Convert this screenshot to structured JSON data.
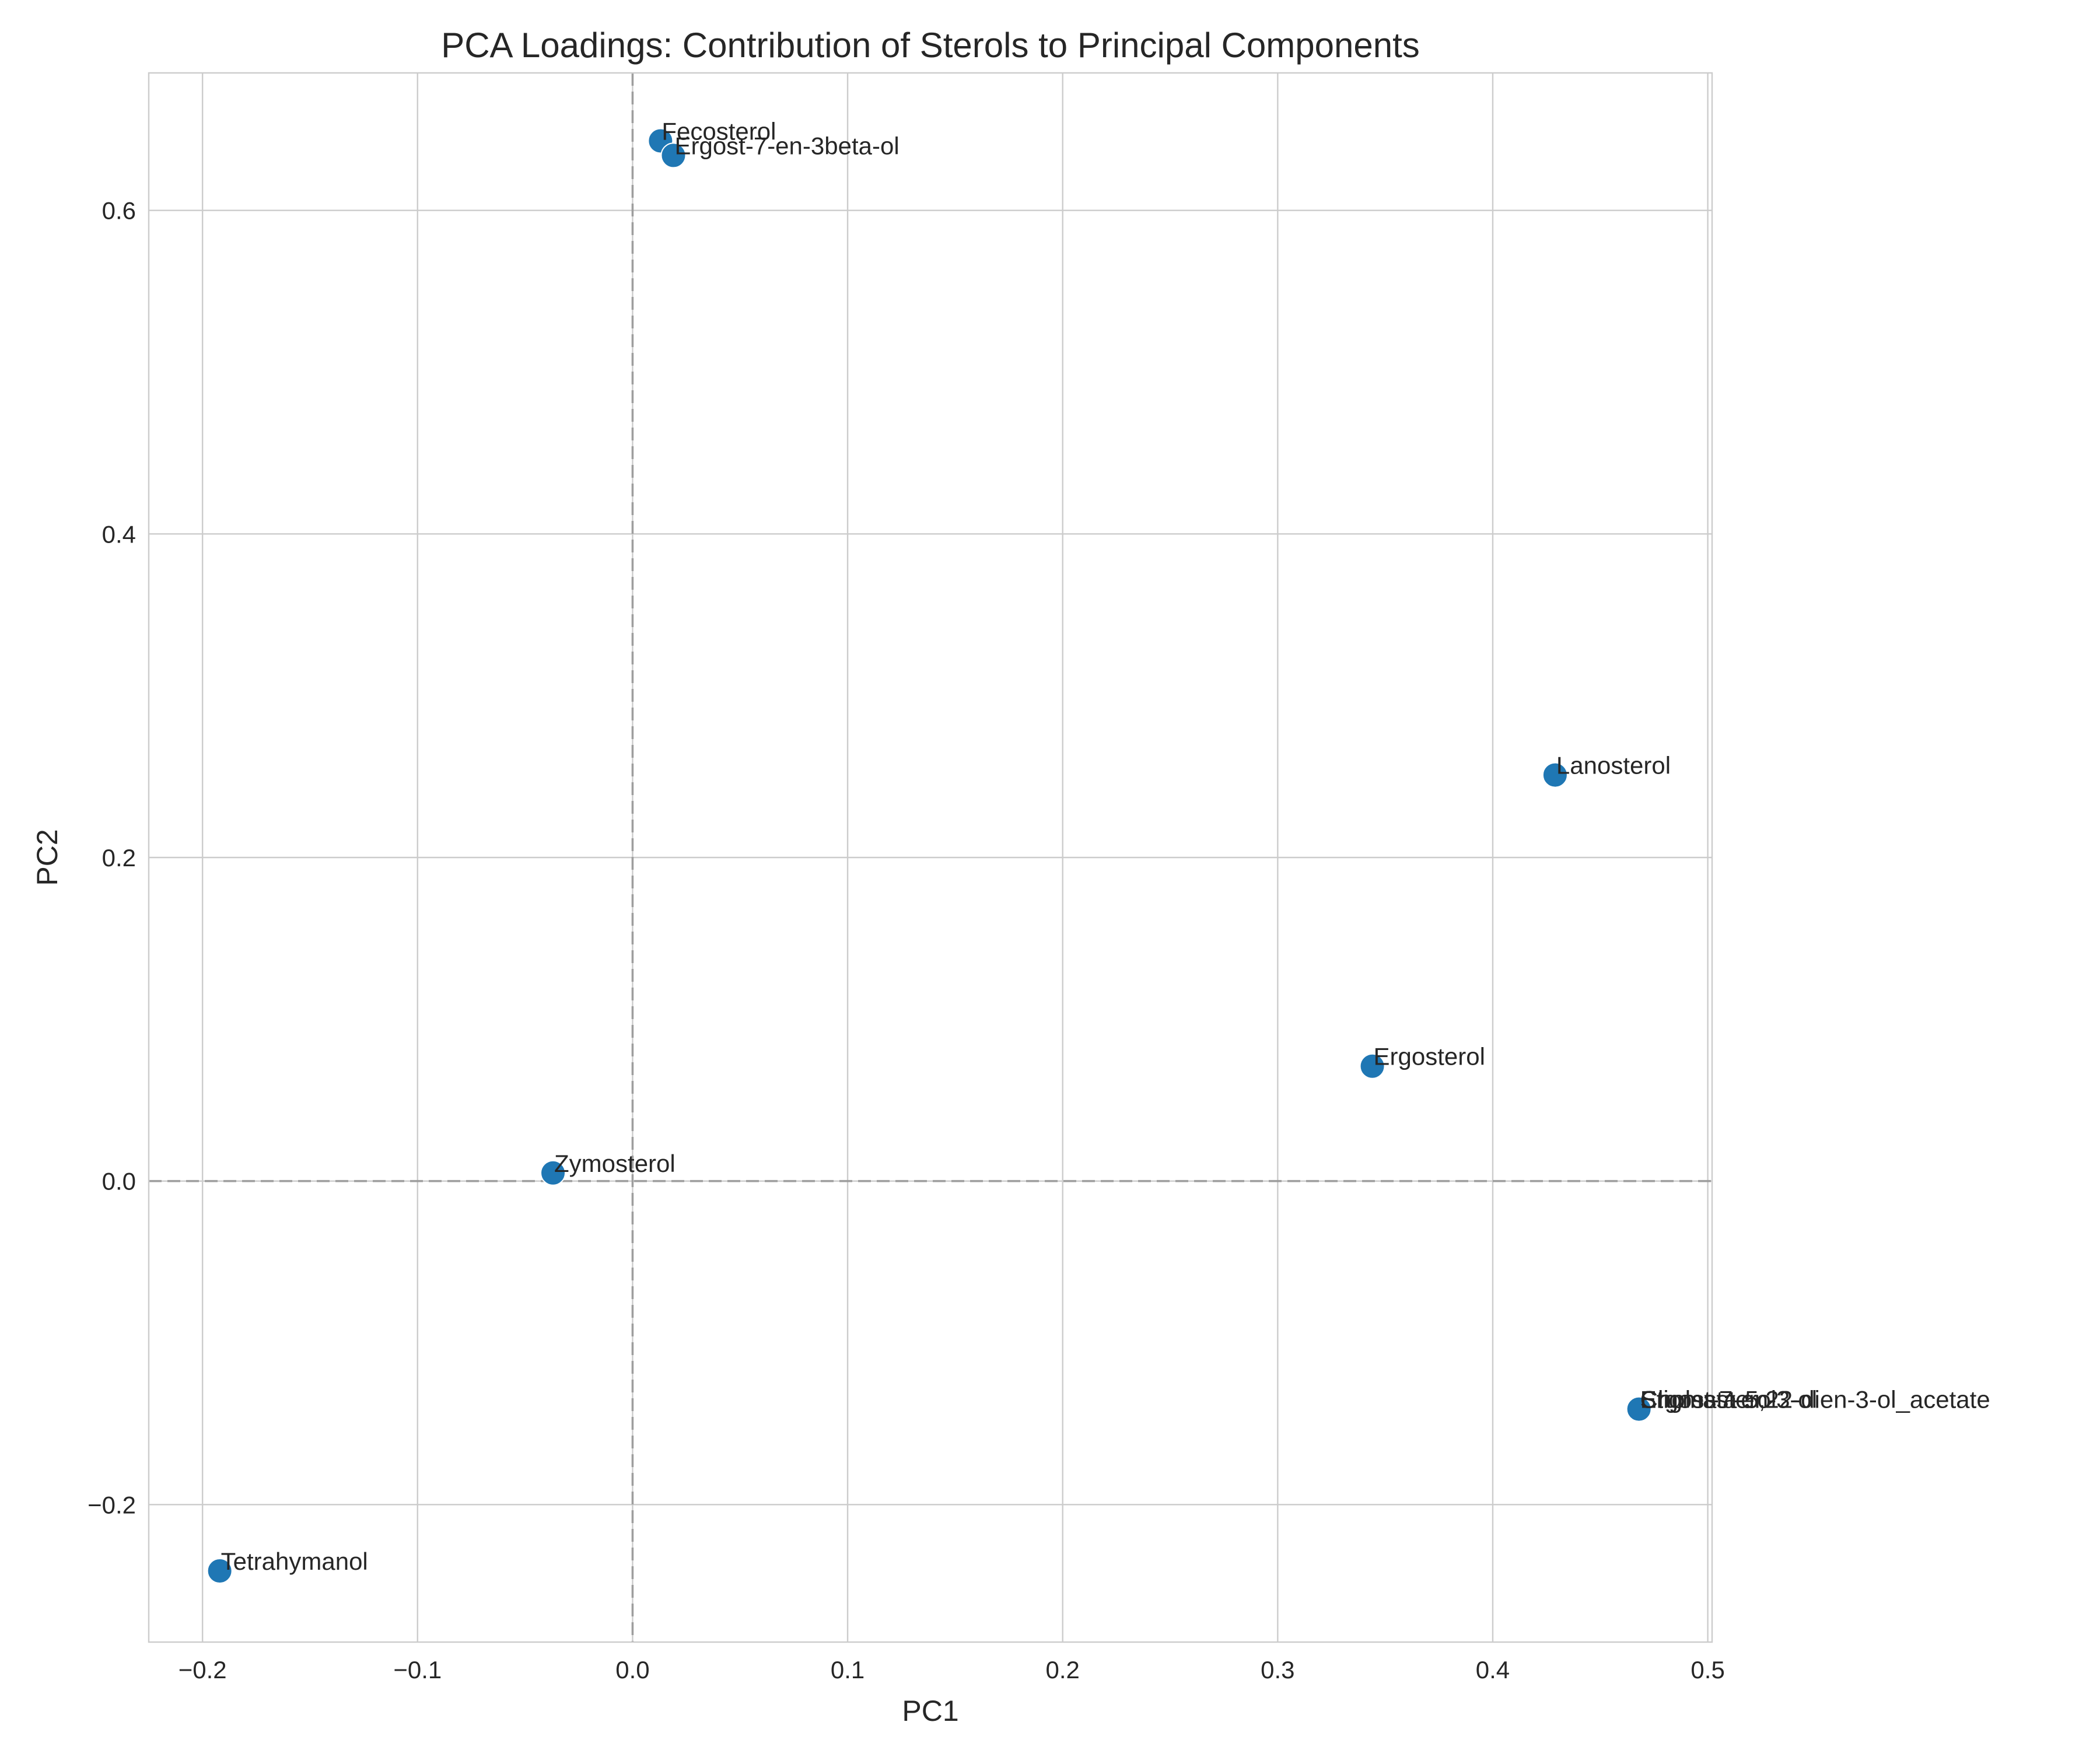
{
  "chart_data": {
    "type": "scatter",
    "title": "PCA Loadings: Contribution of Sterols to Principal Components",
    "xlabel": "PC1",
    "ylabel": "PC2",
    "xlim": [
      -0.225,
      0.502
    ],
    "ylim": [
      -0.285,
      0.685
    ],
    "xticks": [
      -0.2,
      -0.1,
      0.0,
      0.1,
      0.2,
      0.3,
      0.4,
      0.5
    ],
    "yticks": [
      -0.2,
      0.0,
      0.2,
      0.4,
      0.6
    ],
    "xtick_labels": [
      "−0.2",
      "−0.1",
      "0.0",
      "0.1",
      "0.2",
      "0.3",
      "0.4",
      "0.5"
    ],
    "ytick_labels": [
      "−0.2",
      "0.0",
      "0.2",
      "0.4",
      "0.6"
    ],
    "grid": true,
    "reference_lines": {
      "x": 0,
      "y": 0,
      "style": "dashed"
    },
    "marker_color": "#1f77b4",
    "points": [
      {
        "label": "Fecosterol",
        "x": 0.013,
        "y": 0.643
      },
      {
        "label": "Ergost-7-en-3beta-ol",
        "x": 0.019,
        "y": 0.634
      },
      {
        "label": "Lanosterol",
        "x": 0.429,
        "y": 0.251
      },
      {
        "label": "Ergosterol",
        "x": 0.344,
        "y": 0.071
      },
      {
        "label": "Zymosterol",
        "x": -0.037,
        "y": 0.005
      },
      {
        "label": "Stigmasterol",
        "x": 0.468,
        "y": -0.141
      },
      {
        "label": "Cholesta-5,22-dien-3-ol_acetate",
        "x": 0.468,
        "y": -0.141
      },
      {
        "label": "Ergost-7-en-3-ol",
        "x": 0.468,
        "y": -0.141
      },
      {
        "label": "Tetrahymanol",
        "x": -0.192,
        "y": -0.241
      }
    ]
  }
}
